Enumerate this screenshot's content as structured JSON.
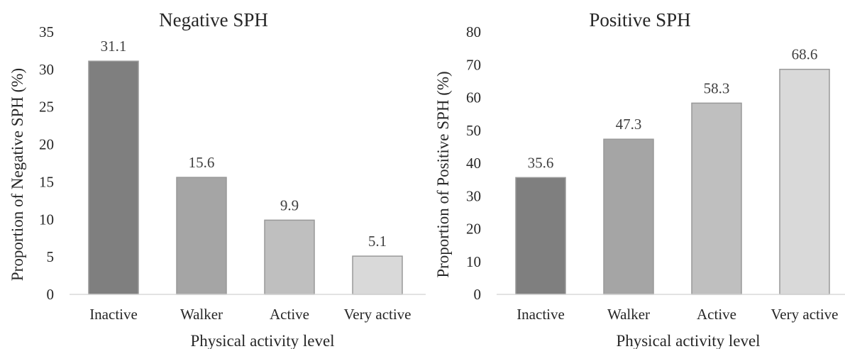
{
  "chart_data": [
    {
      "type": "bar",
      "title": "Negative SPH",
      "xlabel": "Physical activity level",
      "ylabel": "Proportion of  Negative SPH (%)",
      "categories": [
        "Inactive",
        "Walker",
        "Active",
        "Very active"
      ],
      "values": [
        31.1,
        15.6,
        9.9,
        5.1
      ],
      "data_labels": [
        "31.1",
        "15.6",
        "9.9",
        "5.1"
      ],
      "ylim": [
        0,
        35
      ],
      "yticks": [
        0,
        5,
        10,
        15,
        20,
        25,
        30,
        35
      ],
      "grid": false,
      "legend": "none",
      "bar_colors": [
        "#7f7f7f",
        "#a5a5a5",
        "#bfbfbf",
        "#d9d9d9"
      ]
    },
    {
      "type": "bar",
      "title": "Positive SPH",
      "xlabel": "Physical activity level",
      "ylabel": "Proportion of  Positive SPH (%)",
      "categories": [
        "Inactive",
        "Walker",
        "Active",
        "Very active"
      ],
      "values": [
        35.6,
        47.3,
        58.3,
        68.6
      ],
      "data_labels": [
        "35.6",
        "47.3",
        "58.3",
        "68.6"
      ],
      "ylim": [
        0,
        80
      ],
      "yticks": [
        0,
        10,
        20,
        30,
        40,
        50,
        60,
        70,
        80
      ],
      "grid": false,
      "legend": "none",
      "bar_colors": [
        "#7f7f7f",
        "#a5a5a5",
        "#bfbfbf",
        "#d9d9d9"
      ]
    }
  ]
}
